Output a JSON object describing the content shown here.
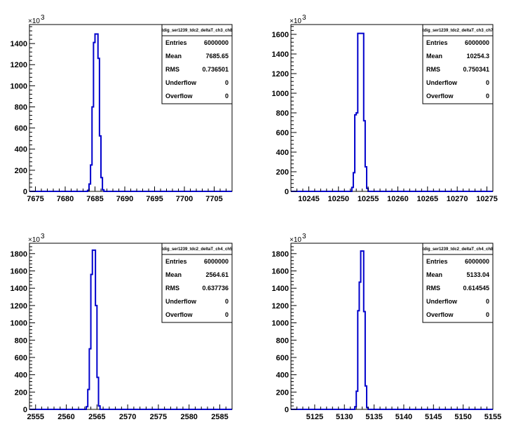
{
  "chart_data": [
    {
      "type": "histogram",
      "title": "tdig_ser1239_tdc2_deltaT_ch3_ch8",
      "xlim": [
        7674,
        7708
      ],
      "ylim": [
        0,
        1580
      ],
      "y_multiplier": "×10",
      "y_exponent": "3",
      "x_ticks": [
        7675,
        7680,
        7685,
        7690,
        7695,
        7700,
        7705
      ],
      "y_ticks": [
        0,
        200,
        400,
        600,
        800,
        1000,
        1200,
        1400
      ],
      "bin_width": 0.25,
      "bins_x": [
        7683.5,
        7683.75,
        7684.0,
        7684.25,
        7684.5,
        7684.75,
        7685.0,
        7685.25,
        7685.5,
        7685.75,
        7686.0,
        7686.25,
        7686.5,
        7686.75,
        7687.0,
        7687.25
      ],
      "bins_y": [
        0,
        10,
        70,
        250,
        800,
        1410,
        1490,
        1490,
        1260,
        525,
        130,
        15,
        0,
        0,
        0,
        0
      ],
      "stats": {
        "title": "tdig_ser1239_tdc2_deltaT_ch3_ch8",
        "rows": [
          {
            "label": "Entries",
            "value": "6000000"
          },
          {
            "label": "Mean",
            "value": "7685.65"
          },
          {
            "label": "RMS",
            "value": "0.736501"
          },
          {
            "label": "Underflow",
            "value": "0"
          },
          {
            "label": "Overflow",
            "value": "0"
          }
        ]
      }
    },
    {
      "type": "histogram",
      "title": "tdig_ser1239_tdc2_deltaT_ch3_ch7",
      "xlim": [
        10242,
        10276
      ],
      "ylim": [
        0,
        1700
      ],
      "y_multiplier": "×10",
      "y_exponent": "3",
      "x_ticks": [
        10245,
        10250,
        10255,
        10260,
        10265,
        10270,
        10275
      ],
      "y_ticks": [
        0,
        200,
        400,
        600,
        800,
        1000,
        1200,
        1400,
        1600
      ],
      "bin_width": 0.25,
      "bins_x": [
        10252.0,
        10252.25,
        10252.5,
        10252.75,
        10253.0,
        10253.25,
        10253.5,
        10253.75,
        10254.0,
        10254.25,
        10254.5,
        10254.75,
        10255.0,
        10255.25,
        10255.5,
        10255.75
      ],
      "bins_y": [
        0,
        40,
        190,
        780,
        800,
        1610,
        1610,
        1610,
        1610,
        720,
        250,
        30,
        0,
        0,
        0,
        0
      ],
      "stats": {
        "title": "tdig_ser1239_tdc2_deltaT_ch3_ch7",
        "rows": [
          {
            "label": "Entries",
            "value": "6000000"
          },
          {
            "label": "Mean",
            "value": "10254.3"
          },
          {
            "label": "RMS",
            "value": "0.750341"
          },
          {
            "label": "Underflow",
            "value": "0"
          },
          {
            "label": "Overflow",
            "value": "0"
          }
        ]
      }
    },
    {
      "type": "histogram",
      "title": "tdig_ser1239_tdc2_deltaT_ch4_ch5",
      "xlim": [
        2554,
        2587
      ],
      "ylim": [
        0,
        1920
      ],
      "y_multiplier": "×10",
      "y_exponent": "3",
      "x_ticks": [
        2555,
        2560,
        2565,
        2570,
        2575,
        2580,
        2585
      ],
      "y_ticks": [
        0,
        200,
        400,
        600,
        800,
        1000,
        1200,
        1400,
        1600,
        1800
      ],
      "bin_width": 0.25,
      "bins_x": [
        2563.0,
        2563.25,
        2563.5,
        2563.75,
        2564.0,
        2564.25,
        2564.5,
        2564.75,
        2565.0,
        2565.25,
        2565.5,
        2565.75,
        2566.0,
        2566.25,
        2566.5,
        2566.75
      ],
      "bins_y": [
        0,
        30,
        230,
        700,
        1560,
        1840,
        1840,
        1200,
        370,
        40,
        0,
        0,
        0,
        0,
        0,
        0
      ],
      "stats": {
        "title": "tdig_ser1239_tdc2_deltaT_ch4_ch5",
        "rows": [
          {
            "label": "Entries",
            "value": "6000000"
          },
          {
            "label": "Mean",
            "value": "2564.61"
          },
          {
            "label": "RMS",
            "value": "0.637736"
          },
          {
            "label": "Underflow",
            "value": "0"
          },
          {
            "label": "Overflow",
            "value": "0"
          }
        ]
      }
    },
    {
      "type": "histogram",
      "title": "tdig_ser1239_tdc2_deltaT_ch4_ch8",
      "xlim": [
        5121,
        5155
      ],
      "ylim": [
        0,
        1920
      ],
      "y_multiplier": "×10",
      "y_exponent": "3",
      "x_ticks": [
        5125,
        5130,
        5135,
        5140,
        5145,
        5150,
        5155
      ],
      "y_ticks": [
        0,
        200,
        400,
        600,
        800,
        1000,
        1200,
        1400,
        1600,
        1800
      ],
      "bin_width": 0.25,
      "bins_x": [
        5131.5,
        5131.75,
        5132.0,
        5132.25,
        5132.5,
        5132.75,
        5133.0,
        5133.25,
        5133.5,
        5133.75,
        5134.0,
        5134.25,
        5134.5,
        5134.75
      ],
      "bins_y": [
        0,
        30,
        210,
        1140,
        1470,
        1830,
        1830,
        1130,
        270,
        20,
        0,
        0,
        0,
        0
      ],
      "stats": {
        "title": "tdig_ser1239_tdc2_deltaT_ch4_ch8",
        "rows": [
          {
            "label": "Entries",
            "value": "6000000"
          },
          {
            "label": "Mean",
            "value": "5133.04"
          },
          {
            "label": "RMS",
            "value": "0.614545"
          },
          {
            "label": "Underflow",
            "value": "0"
          },
          {
            "label": "Overflow",
            "value": "0"
          }
        ]
      }
    }
  ]
}
